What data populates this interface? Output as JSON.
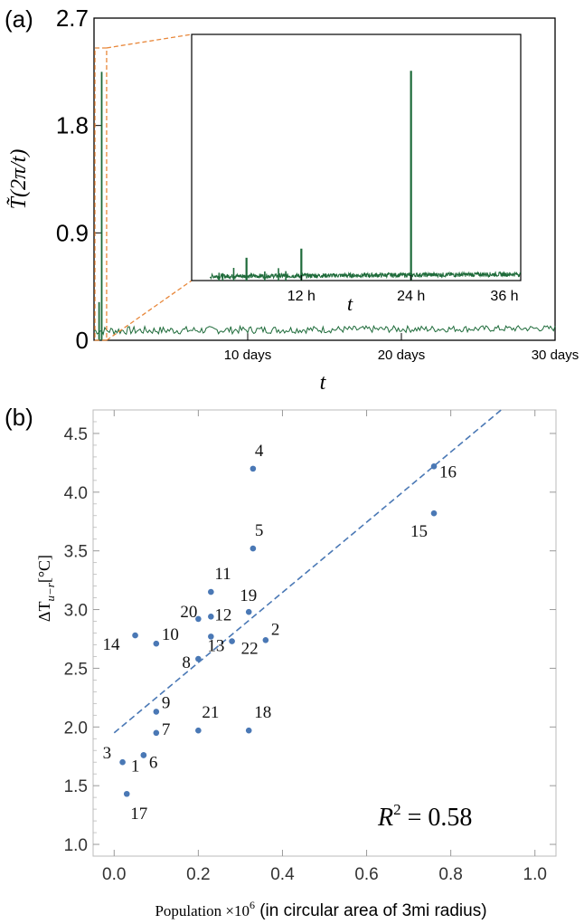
{
  "chart_data": [
    {
      "panel": "(a)",
      "type": "line",
      "ylabel": "T̃(2π/t)",
      "xlabel": "t",
      "y_ticks": [
        "2.7",
        "1.8",
        "0.9",
        "0"
      ],
      "x_ticks": [
        "10 days",
        "20 days",
        "30 days"
      ],
      "ylim": [
        0,
        2.7
      ],
      "xlim_days": [
        0,
        30
      ],
      "line_color": "#1e6b3a",
      "highlight_color": "#e8873a",
      "peaks": [
        {
          "x_days": 0.5,
          "y": 2.25
        },
        {
          "x_days": 0.33,
          "y": 0.32
        }
      ],
      "inset": {
        "xlabel": "t",
        "x_ticks": [
          "12 h",
          "24 h",
          "36 h"
        ],
        "xlim_hours": [
          0,
          36
        ],
        "peaks": [
          {
            "x_hours": 24,
            "y": 2.3
          },
          {
            "x_hours": 12,
            "y": 0.35
          },
          {
            "x_hours": 6,
            "y": 0.25
          }
        ]
      }
    },
    {
      "panel": "(b)",
      "type": "scatter",
      "ylabel": "ΔT",
      "ylabel_sub": "u−r",
      "ylabel_unit": "[°C]",
      "xlabel_prefix": "Population ×10",
      "xlabel_sup": "6",
      "xlabel_rest": " (in circular area of 3mi radius)",
      "annotation": "R",
      "annotation_sup": "2",
      "annotation_value": " = 0.58",
      "xlim": [
        -0.05,
        1.05
      ],
      "ylim": [
        0.9,
        4.7
      ],
      "x_ticks": [
        "0.0",
        "0.2",
        "0.4",
        "0.6",
        "0.8",
        "1.0"
      ],
      "y_ticks": [
        "1.0",
        "1.5",
        "2.0",
        "2.5",
        "3.0",
        "3.5",
        "4.0",
        "4.5"
      ],
      "point_color": "#4a78b5",
      "fit_line": {
        "intercept": 1.95,
        "slope": 2.99,
        "color": "#4a78b5"
      },
      "points": [
        {
          "label": "1",
          "x": 0.07,
          "y": 1.76
        },
        {
          "label": "2",
          "x": 0.36,
          "y": 2.74
        },
        {
          "label": "3",
          "x": 0.02,
          "y": 1.7
        },
        {
          "label": "4",
          "x": 0.33,
          "y": 4.2
        },
        {
          "label": "5",
          "x": 0.33,
          "y": 3.52
        },
        {
          "label": "6",
          "x": 0.07,
          "y": 1.76
        },
        {
          "label": "7",
          "x": 0.1,
          "y": 1.95
        },
        {
          "label": "8",
          "x": 0.2,
          "y": 2.58
        },
        {
          "label": "9",
          "x": 0.1,
          "y": 2.13
        },
        {
          "label": "10",
          "x": 0.1,
          "y": 2.71
        },
        {
          "label": "11",
          "x": 0.23,
          "y": 3.15
        },
        {
          "label": "12",
          "x": 0.23,
          "y": 2.94
        },
        {
          "label": "13",
          "x": 0.23,
          "y": 2.77
        },
        {
          "label": "14",
          "x": 0.05,
          "y": 2.78
        },
        {
          "label": "15",
          "x": 0.76,
          "y": 3.82
        },
        {
          "label": "16",
          "x": 0.76,
          "y": 4.22
        },
        {
          "label": "17",
          "x": 0.03,
          "y": 1.43
        },
        {
          "label": "18",
          "x": 0.32,
          "y": 1.97
        },
        {
          "label": "19",
          "x": 0.32,
          "y": 2.98
        },
        {
          "label": "20",
          "x": 0.2,
          "y": 2.92
        },
        {
          "label": "21",
          "x": 0.2,
          "y": 1.97
        },
        {
          "label": "22",
          "x": 0.28,
          "y": 2.73
        }
      ]
    }
  ]
}
